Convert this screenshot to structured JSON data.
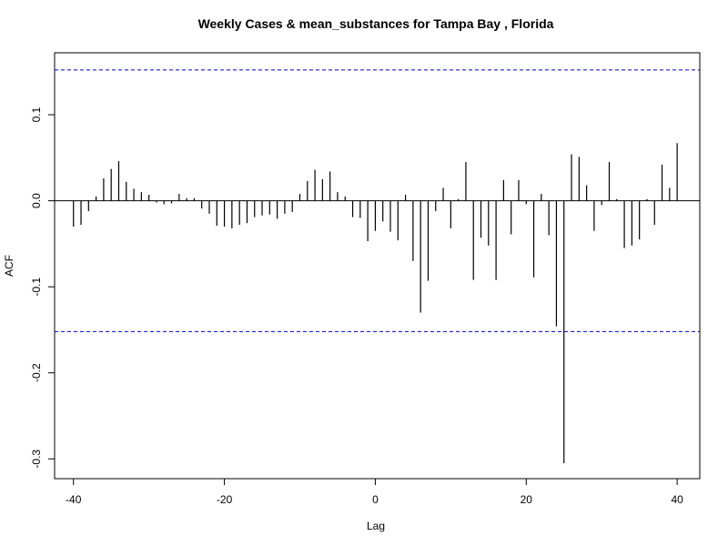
{
  "chart_data": {
    "type": "bar",
    "title": "Weekly Cases & mean_substances for Tampa Bay , Florida",
    "xlabel": "Lag",
    "ylabel": "ACF",
    "xlim": [
      -42.5,
      43
    ],
    "ylim": [
      -0.323,
      0.172
    ],
    "x_ticks": [
      -40,
      -20,
      0,
      20,
      40
    ],
    "x_tick_labels": [
      "-40",
      "-20",
      "0",
      "20",
      "40"
    ],
    "y_ticks": [
      -0.3,
      -0.2,
      -0.1,
      0.0,
      0.1
    ],
    "y_tick_labels": [
      "-0.3",
      "-0.2",
      "-0.1",
      "0.0",
      "0.1"
    ],
    "confidence_bound": 0.152,
    "colors": {
      "bars": "#000000",
      "ci": "#0000cc",
      "zero": "#000000"
    },
    "lags": [
      -40,
      -39,
      -38,
      -37,
      -36,
      -35,
      -34,
      -33,
      -32,
      -31,
      -30,
      -29,
      -28,
      -27,
      -26,
      -25,
      -24,
      -23,
      -22,
      -21,
      -20,
      -19,
      -18,
      -17,
      -16,
      -15,
      -14,
      -13,
      -12,
      -11,
      -10,
      -9,
      -8,
      -7,
      -6,
      -5,
      -4,
      -3,
      -2,
      -1,
      0,
      1,
      2,
      3,
      4,
      5,
      6,
      7,
      8,
      9,
      10,
      11,
      12,
      13,
      14,
      15,
      16,
      17,
      18,
      19,
      20,
      21,
      22,
      23,
      24,
      25,
      26,
      27,
      28,
      29,
      30,
      31,
      32,
      33,
      34,
      35,
      36,
      37,
      38,
      39,
      40
    ],
    "values": [
      -0.03,
      -0.028,
      -0.012,
      0.005,
      0.026,
      0.037,
      0.046,
      0.022,
      0.014,
      0.01,
      0.007,
      -0.002,
      -0.004,
      -0.003,
      0.008,
      0.003,
      0.003,
      -0.009,
      -0.015,
      -0.029,
      -0.03,
      -0.032,
      -0.028,
      -0.026,
      -0.019,
      -0.017,
      -0.016,
      -0.021,
      -0.015,
      -0.013,
      0.008,
      0.023,
      0.036,
      0.025,
      0.034,
      0.01,
      0.005,
      -0.019,
      -0.02,
      -0.047,
      -0.035,
      -0.024,
      -0.036,
      -0.046,
      0.007,
      -0.07,
      -0.13,
      -0.093,
      -0.012,
      0.015,
      -0.032,
      0.002,
      0.045,
      -0.092,
      -0.043,
      -0.052,
      -0.092,
      0.024,
      -0.039,
      0.024,
      -0.004,
      -0.089,
      0.008,
      -0.04,
      -0.146,
      -0.305,
      0.054,
      0.051,
      0.018,
      -0.035,
      -0.005,
      0.045,
      0.002,
      -0.055,
      -0.052,
      -0.045,
      0.002,
      -0.028,
      0.042,
      0.015,
      0.067
    ]
  }
}
